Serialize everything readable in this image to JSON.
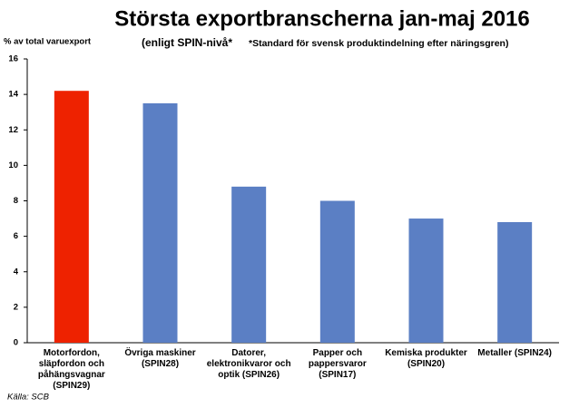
{
  "chart_data": {
    "type": "bar",
    "title": "Största exportbranscherna jan-maj 2016",
    "subtitle": "(enligt SPIN-nivå*",
    "note": "*Standard för svensk produktindelning efter näringsgren)",
    "y_label": "% av total varuexport",
    "source": "Källa: SCB",
    "categories": [
      "Motorfordon, släpfordon och påhängsvagnar (SPIN29)",
      "Övriga maskiner (SPIN28)",
      "Datorer, elektronikvaror och optik (SPIN26)",
      "Papper och pappersvaror (SPIN17)",
      "Kemiska produkter (SPIN20)",
      "Metaller (SPIN24)"
    ],
    "values": [
      14.2,
      13.5,
      8.8,
      8.0,
      7.0,
      6.8
    ],
    "colors": [
      "#ee2200",
      "#5b7fc4",
      "#5b7fc4",
      "#5b7fc4",
      "#5b7fc4",
      "#5b7fc4"
    ],
    "ylim": [
      0,
      16
    ],
    "yticks": [
      0,
      2,
      4,
      6,
      8,
      10,
      12,
      14,
      16
    ],
    "grid": false
  }
}
